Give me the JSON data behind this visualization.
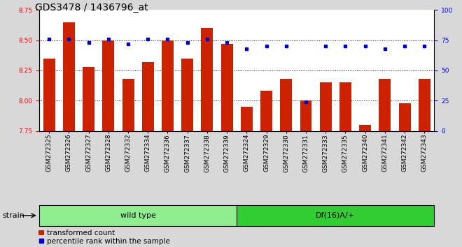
{
  "title": "GDS3478 / 1436796_at",
  "categories": [
    "GSM272325",
    "GSM272326",
    "GSM272327",
    "GSM272328",
    "GSM272332",
    "GSM272334",
    "GSM272336",
    "GSM272337",
    "GSM272338",
    "GSM272339",
    "GSM272324",
    "GSM272329",
    "GSM272330",
    "GSM272331",
    "GSM272333",
    "GSM272335",
    "GSM272340",
    "GSM272341",
    "GSM272342",
    "GSM272343"
  ],
  "bar_values": [
    8.35,
    8.65,
    8.28,
    8.5,
    8.18,
    8.32,
    8.5,
    8.35,
    8.6,
    8.47,
    7.95,
    8.08,
    8.18,
    8.0,
    8.15,
    8.15,
    7.8,
    8.18,
    7.98,
    8.18
  ],
  "percentile_values": [
    76,
    76,
    73,
    76,
    72,
    76,
    76,
    73,
    76,
    73,
    68,
    70,
    70,
    24,
    70,
    70,
    70,
    68,
    70,
    70
  ],
  "ylim_left": [
    7.75,
    8.75
  ],
  "ylim_right": [
    0,
    100
  ],
  "yticks_left": [
    7.75,
    8.0,
    8.25,
    8.5,
    8.75
  ],
  "yticks_right": [
    0,
    25,
    50,
    75,
    100
  ],
  "bar_color": "#CC2200",
  "percentile_color": "#0000CC",
  "grid_color": "black",
  "background_color": "#D8D8D8",
  "plot_bg_color": "white",
  "group1_label": "wild type",
  "group2_label": "Df(16)A/+",
  "group1_count": 10,
  "group2_count": 10,
  "group1_color": "#90EE90",
  "group2_color": "#32CD32",
  "strain_label": "strain",
  "legend_bar_label": "transformed count",
  "legend_dot_label": "percentile rank within the sample",
  "title_fontsize": 10,
  "tick_fontsize": 6.5,
  "label_fontsize": 8
}
